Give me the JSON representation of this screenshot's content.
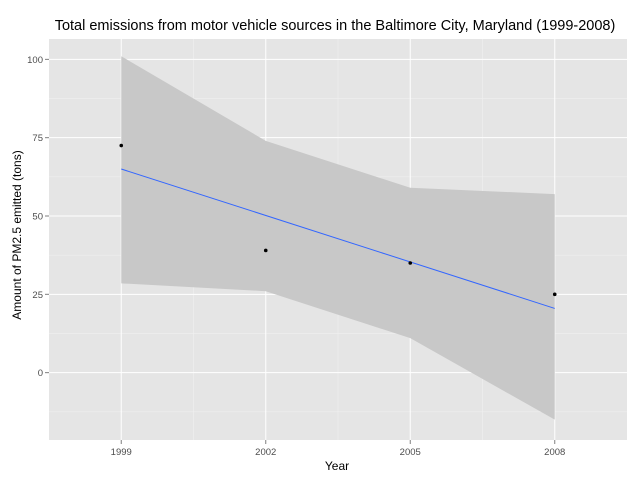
{
  "chart_data": {
    "type": "scatter",
    "title": "Total emissions from motor vehicle sources in the Baltimore City, Maryland (1999-2008)",
    "xlabel": "Year",
    "ylabel": "Amount of PM2.5 emitted (tons)",
    "x_ticks": [
      "1999",
      "2002",
      "2005",
      "2008"
    ],
    "y_ticks": [
      "0",
      "25",
      "50",
      "75",
      "100"
    ],
    "xlim": [
      1997.5,
      2009.5
    ],
    "ylim": [
      -21.5,
      106.5
    ],
    "grid": true,
    "points": [
      {
        "x": 1999,
        "y": 72.5
      },
      {
        "x": 2002,
        "y": 39
      },
      {
        "x": 2005,
        "y": 35
      },
      {
        "x": 2008,
        "y": 25
      }
    ],
    "trend_line": {
      "x": [
        1999,
        2008
      ],
      "y": [
        65,
        20.5
      ]
    },
    "confidence_band": {
      "x": [
        1999,
        2002,
        2005,
        2008
      ],
      "upper": [
        101,
        74,
        59,
        57
      ],
      "lower": [
        28.5,
        26,
        11,
        -15
      ]
    },
    "colors": {
      "panel": "#e5e5e5",
      "grid_major": "#ffffff",
      "grid_minor": "#f2f2f2",
      "band": "#c8c8c8",
      "line": "#3366ff",
      "point": "#000000"
    }
  }
}
